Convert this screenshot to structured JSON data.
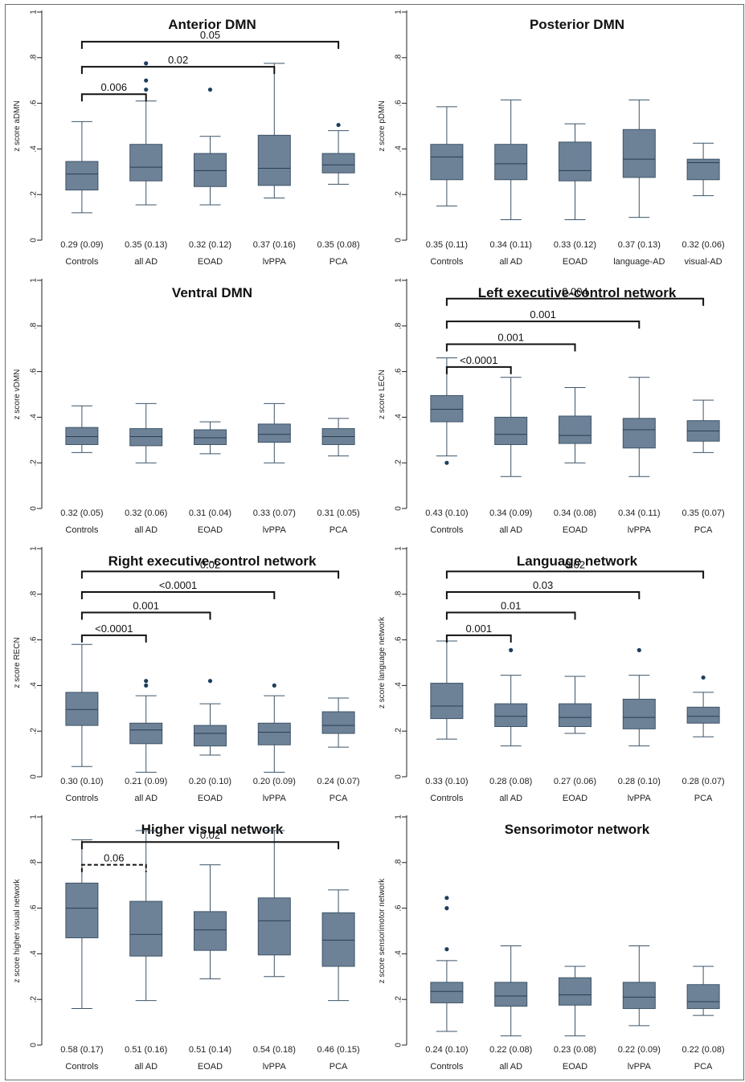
{
  "chart_data": [
    {
      "type": "box",
      "title": "Anterior DMN",
      "ylabel": "z score aDMN",
      "ylim": [
        0,
        1
      ],
      "yticks": [
        "0",
        ".2",
        ".4",
        ".6",
        ".8",
        "1"
      ],
      "categories": [
        "Controls",
        "all AD",
        "EOAD",
        "lvPPA",
        "PCA"
      ],
      "stats_labels": [
        "0.29 (0.09)",
        "0.35 (0.13)",
        "0.32 (0.12)",
        "0.37 (0.16)",
        "0.35 (0.08)"
      ],
      "boxes": [
        {
          "min": 0.12,
          "q1": 0.22,
          "median": 0.29,
          "q3": 0.345,
          "max": 0.52,
          "outliers": []
        },
        {
          "min": 0.155,
          "q1": 0.26,
          "median": 0.32,
          "q3": 0.42,
          "max": 0.61,
          "outliers": [
            0.66,
            0.7,
            0.775
          ]
        },
        {
          "min": 0.155,
          "q1": 0.235,
          "median": 0.305,
          "q3": 0.38,
          "max": 0.455,
          "outliers": [
            0.66
          ]
        },
        {
          "min": 0.185,
          "q1": 0.24,
          "median": 0.315,
          "q3": 0.46,
          "max": 0.775,
          "outliers": []
        },
        {
          "min": 0.245,
          "q1": 0.295,
          "median": 0.33,
          "q3": 0.38,
          "max": 0.48,
          "outliers": [
            0.505
          ]
        }
      ],
      "comparisons": [
        {
          "from": 0,
          "to": 1,
          "level": 0.64,
          "label": "0.006",
          "dashed": false
        },
        {
          "from": 0,
          "to": 3,
          "level": 0.76,
          "label": "0.02",
          "dashed": false
        },
        {
          "from": 0,
          "to": 4,
          "level": 0.87,
          "label": "0.05",
          "dashed": false
        }
      ]
    },
    {
      "type": "box",
      "title": "Posterior DMN",
      "ylabel": "z score pDMN",
      "ylim": [
        0,
        1
      ],
      "yticks": [
        "0",
        ".2",
        ".4",
        ".6",
        ".8",
        "1"
      ],
      "categories": [
        "Controls",
        "all AD",
        "EOAD",
        "language-AD",
        "visual-AD"
      ],
      "stats_labels": [
        "0.35 (0.11)",
        "0.34 (0.11)",
        "0.33 (0.12)",
        "0.37 (0.13)",
        "0.32 (0.06)"
      ],
      "boxes": [
        {
          "min": 0.15,
          "q1": 0.265,
          "median": 0.365,
          "q3": 0.42,
          "max": 0.585,
          "outliers": []
        },
        {
          "min": 0.09,
          "q1": 0.265,
          "median": 0.335,
          "q3": 0.42,
          "max": 0.615,
          "outliers": []
        },
        {
          "min": 0.09,
          "q1": 0.26,
          "median": 0.305,
          "q3": 0.43,
          "max": 0.51,
          "outliers": []
        },
        {
          "min": 0.1,
          "q1": 0.275,
          "median": 0.355,
          "q3": 0.485,
          "max": 0.615,
          "outliers": []
        },
        {
          "min": 0.195,
          "q1": 0.265,
          "median": 0.34,
          "q3": 0.355,
          "max": 0.425,
          "outliers": []
        }
      ],
      "comparisons": []
    },
    {
      "type": "box",
      "title": "Ventral DMN",
      "ylabel": "z score vDMN",
      "ylim": [
        0,
        1
      ],
      "yticks": [
        "0",
        ".2",
        ".4",
        ".6",
        ".8",
        "1"
      ],
      "categories": [
        "Controls",
        "all AD",
        "EOAD",
        "lvPPA",
        "PCA"
      ],
      "stats_labels": [
        "0.32 (0.05)",
        "0.32 (0.06)",
        "0.31 (0.04)",
        "0.33 (0.07)",
        "0.31 (0.05)"
      ],
      "boxes": [
        {
          "min": 0.245,
          "q1": 0.28,
          "median": 0.315,
          "q3": 0.355,
          "max": 0.45,
          "outliers": []
        },
        {
          "min": 0.2,
          "q1": 0.275,
          "median": 0.315,
          "q3": 0.35,
          "max": 0.46,
          "outliers": []
        },
        {
          "min": 0.24,
          "q1": 0.28,
          "median": 0.31,
          "q3": 0.345,
          "max": 0.38,
          "outliers": []
        },
        {
          "min": 0.2,
          "q1": 0.29,
          "median": 0.325,
          "q3": 0.37,
          "max": 0.46,
          "outliers": []
        },
        {
          "min": 0.23,
          "q1": 0.28,
          "median": 0.315,
          "q3": 0.35,
          "max": 0.395,
          "outliers": []
        }
      ],
      "comparisons": []
    },
    {
      "type": "box",
      "title": "Left executive-control network",
      "ylabel": "z score LECN",
      "ylim": [
        0,
        1
      ],
      "yticks": [
        "0",
        ".2",
        ".4",
        ".6",
        ".8",
        "1"
      ],
      "categories": [
        "Controls",
        "all AD",
        "EOAD",
        "lvPPA",
        "PCA"
      ],
      "stats_labels": [
        "0.43 (0.10)",
        "0.34 (0.09)",
        "0.34 (0.08)",
        "0.34 (0.11)",
        "0.35 (0.07)"
      ],
      "boxes": [
        {
          "min": 0.23,
          "q1": 0.38,
          "median": 0.435,
          "q3": 0.495,
          "max": 0.66,
          "outliers": [
            0.2
          ]
        },
        {
          "min": 0.14,
          "q1": 0.28,
          "median": 0.325,
          "q3": 0.4,
          "max": 0.575,
          "outliers": []
        },
        {
          "min": 0.2,
          "q1": 0.285,
          "median": 0.32,
          "q3": 0.405,
          "max": 0.53,
          "outliers": []
        },
        {
          "min": 0.14,
          "q1": 0.265,
          "median": 0.345,
          "q3": 0.395,
          "max": 0.575,
          "outliers": []
        },
        {
          "min": 0.245,
          "q1": 0.295,
          "median": 0.34,
          "q3": 0.385,
          "max": 0.475,
          "outliers": []
        }
      ],
      "comparisons": [
        {
          "from": 0,
          "to": 1,
          "level": 0.62,
          "label": "<0.0001",
          "dashed": false
        },
        {
          "from": 0,
          "to": 2,
          "level": 0.72,
          "label": "0.001",
          "dashed": false
        },
        {
          "from": 0,
          "to": 3,
          "level": 0.82,
          "label": "0.001",
          "dashed": false
        },
        {
          "from": 0,
          "to": 4,
          "level": 0.92,
          "label": "0.004",
          "dashed": false
        }
      ]
    },
    {
      "type": "box",
      "title": "Right executive-control network",
      "ylabel": "z score RECN",
      "ylim": [
        0,
        1
      ],
      "yticks": [
        "0",
        ".2",
        ".4",
        ".6",
        ".8",
        "1"
      ],
      "categories": [
        "Controls",
        "all AD",
        "EOAD",
        "lvPPA",
        "PCA"
      ],
      "stats_labels": [
        "0.30 (0.10)",
        "0.21 (0.09)",
        "0.20 (0.10)",
        "0.20 (0.09)",
        "0.24 (0.07)"
      ],
      "boxes": [
        {
          "min": 0.045,
          "q1": 0.225,
          "median": 0.295,
          "q3": 0.37,
          "max": 0.58,
          "outliers": []
        },
        {
          "min": 0.02,
          "q1": 0.145,
          "median": 0.205,
          "q3": 0.235,
          "max": 0.355,
          "outliers": [
            0.4,
            0.42
          ]
        },
        {
          "min": 0.095,
          "q1": 0.135,
          "median": 0.19,
          "q3": 0.225,
          "max": 0.32,
          "outliers": [
            0.42
          ]
        },
        {
          "min": 0.02,
          "q1": 0.14,
          "median": 0.195,
          "q3": 0.235,
          "max": 0.355,
          "outliers": [
            0.4
          ]
        },
        {
          "min": 0.13,
          "q1": 0.19,
          "median": 0.225,
          "q3": 0.285,
          "max": 0.345,
          "outliers": []
        }
      ],
      "comparisons": [
        {
          "from": 0,
          "to": 1,
          "level": 0.62,
          "label": "<0.0001",
          "dashed": false
        },
        {
          "from": 0,
          "to": 2,
          "level": 0.72,
          "label": "0.001",
          "dashed": false
        },
        {
          "from": 0,
          "to": 3,
          "level": 0.81,
          "label": "<0.0001",
          "dashed": false
        },
        {
          "from": 0,
          "to": 4,
          "level": 0.9,
          "label": "0.02",
          "dashed": false
        }
      ]
    },
    {
      "type": "box",
      "title": "Language network",
      "ylabel": "z score language network",
      "ylim": [
        0,
        1
      ],
      "yticks": [
        "0",
        ".2",
        ".4",
        ".6",
        ".8",
        "1"
      ],
      "categories": [
        "Controls",
        "all AD",
        "EOAD",
        "lvPPA",
        "PCA"
      ],
      "stats_labels": [
        "0.33 (0.10)",
        "0.28 (0.08)",
        "0.27 (0.06)",
        "0.28 (0.10)",
        "0.28 (0.07)"
      ],
      "boxes": [
        {
          "min": 0.165,
          "q1": 0.255,
          "median": 0.31,
          "q3": 0.41,
          "max": 0.595,
          "outliers": []
        },
        {
          "min": 0.135,
          "q1": 0.22,
          "median": 0.265,
          "q3": 0.32,
          "max": 0.445,
          "outliers": [
            0.555
          ]
        },
        {
          "min": 0.19,
          "q1": 0.22,
          "median": 0.26,
          "q3": 0.32,
          "max": 0.44,
          "outliers": []
        },
        {
          "min": 0.135,
          "q1": 0.21,
          "median": 0.26,
          "q3": 0.34,
          "max": 0.445,
          "outliers": [
            0.555
          ]
        },
        {
          "min": 0.175,
          "q1": 0.235,
          "median": 0.265,
          "q3": 0.305,
          "max": 0.37,
          "outliers": [
            0.435
          ]
        }
      ],
      "comparisons": [
        {
          "from": 0,
          "to": 1,
          "level": 0.62,
          "label": "0.001",
          "dashed": false
        },
        {
          "from": 0,
          "to": 2,
          "level": 0.72,
          "label": "0.01",
          "dashed": false
        },
        {
          "from": 0,
          "to": 3,
          "level": 0.81,
          "label": "0.03",
          "dashed": false
        },
        {
          "from": 0,
          "to": 4,
          "level": 0.9,
          "label": "0.02",
          "dashed": false
        }
      ]
    },
    {
      "type": "box",
      "title": "Higher visual network",
      "ylabel": "z score higher visual network",
      "ylim": [
        0,
        1
      ],
      "yticks": [
        "0",
        ".2",
        ".4",
        ".6",
        ".8",
        "1"
      ],
      "categories": [
        "Controls",
        "all AD",
        "EOAD",
        "lvPPA",
        "PCA"
      ],
      "stats_labels": [
        "0.58 (0.17)",
        "0.51 (0.16)",
        "0.51 (0.14)",
        "0.54 (0.18)",
        "0.46 (0.15)"
      ],
      "boxes": [
        {
          "min": 0.16,
          "q1": 0.47,
          "median": 0.6,
          "q3": 0.71,
          "max": 0.9,
          "outliers": []
        },
        {
          "min": 0.195,
          "q1": 0.39,
          "median": 0.485,
          "q3": 0.63,
          "max": 0.94,
          "outliers": []
        },
        {
          "min": 0.29,
          "q1": 0.415,
          "median": 0.505,
          "q3": 0.585,
          "max": 0.79,
          "outliers": []
        },
        {
          "min": 0.3,
          "q1": 0.395,
          "median": 0.545,
          "q3": 0.645,
          "max": 0.94,
          "outliers": []
        },
        {
          "min": 0.195,
          "q1": 0.345,
          "median": 0.46,
          "q3": 0.58,
          "max": 0.68,
          "outliers": []
        }
      ],
      "comparisons": [
        {
          "from": 0,
          "to": 1,
          "level": 0.79,
          "label": "0.06",
          "dashed": true
        },
        {
          "from": 0,
          "to": 4,
          "level": 0.89,
          "label": "0.02",
          "dashed": false
        }
      ]
    },
    {
      "type": "box",
      "title": "Sensorimotor network",
      "ylabel": "z score sensorimotor network",
      "ylim": [
        0,
        1
      ],
      "yticks": [
        "0",
        ".2",
        ".4",
        ".6",
        ".8",
        "1"
      ],
      "categories": [
        "Controls",
        "all AD",
        "EOAD",
        "lvPPA",
        "PCA"
      ],
      "stats_labels": [
        "0.24 (0.10)",
        "0.22 (0.08)",
        "0.23 (0.08)",
        "0.22 (0.09)",
        "0.22 (0.08)"
      ],
      "boxes": [
        {
          "min": 0.06,
          "q1": 0.185,
          "median": 0.235,
          "q3": 0.275,
          "max": 0.37,
          "outliers": [
            0.42,
            0.6,
            0.645
          ]
        },
        {
          "min": 0.04,
          "q1": 0.17,
          "median": 0.215,
          "q3": 0.275,
          "max": 0.435,
          "outliers": []
        },
        {
          "min": 0.04,
          "q1": 0.175,
          "median": 0.22,
          "q3": 0.295,
          "max": 0.345,
          "outliers": []
        },
        {
          "min": 0.085,
          "q1": 0.16,
          "median": 0.21,
          "q3": 0.275,
          "max": 0.435,
          "outliers": []
        },
        {
          "min": 0.13,
          "q1": 0.16,
          "median": 0.19,
          "q3": 0.265,
          "max": 0.345,
          "outliers": []
        }
      ],
      "comparisons": []
    }
  ]
}
